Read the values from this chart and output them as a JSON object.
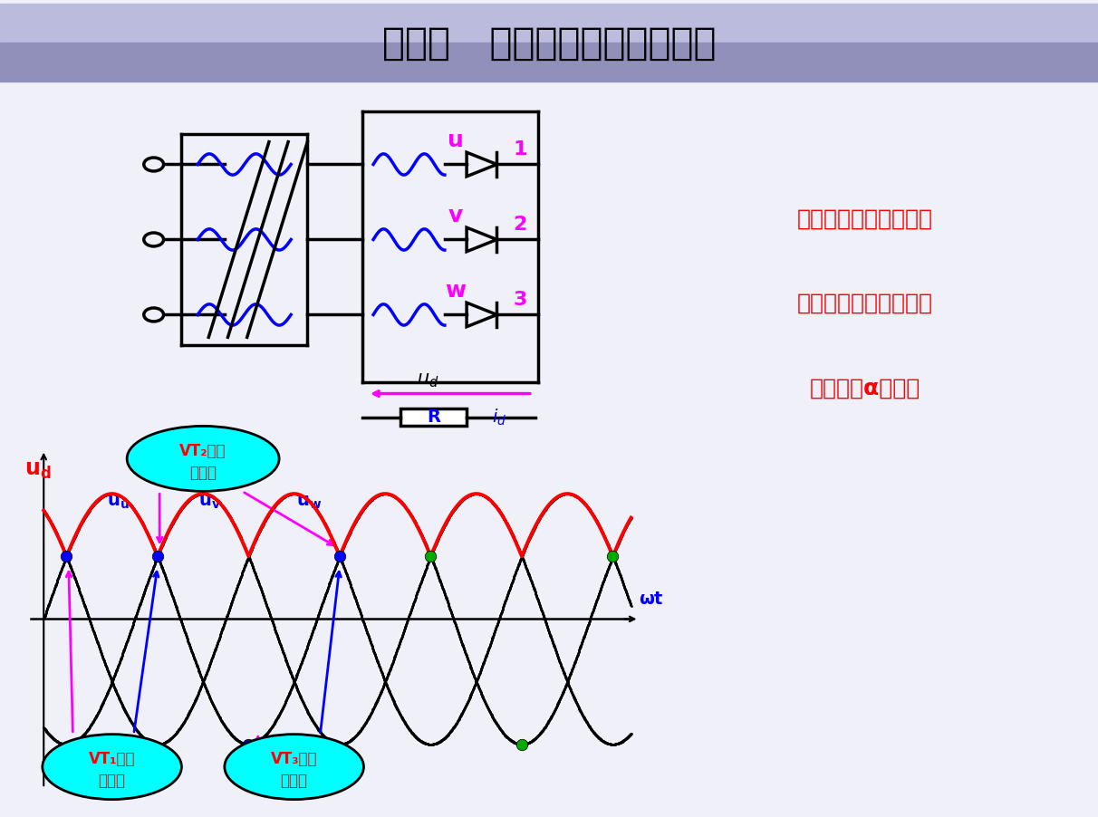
{
  "title": "第一节   三相半波可控整流电路",
  "title_bg_top": "#aaaacc",
  "title_bg_bot": "#8888aa",
  "main_bg": "#f0f0f8",
  "box_text_line1": "不可控整流电路的自然",
  "box_text_line2": "换相点就是可控整流电",
  "box_text_line3": "路控制角α的起点",
  "box_text_color": "#ff0000",
  "box_border_color": "#006600",
  "box_bg_color": "#d4c896",
  "ellipse_fc": "#00ffff",
  "ellipse_ec": "#000000",
  "ellipse_text_color": "#ff0000",
  "blue": "#0000ff",
  "magenta": "#ff00ff",
  "red": "#ff0000",
  "black": "#000000",
  "wave_dot_color": "#000000",
  "red_wave_color": "#ff0000",
  "comm_blue_dot": "#0000ff",
  "comm_green_dot": "#00aa00"
}
